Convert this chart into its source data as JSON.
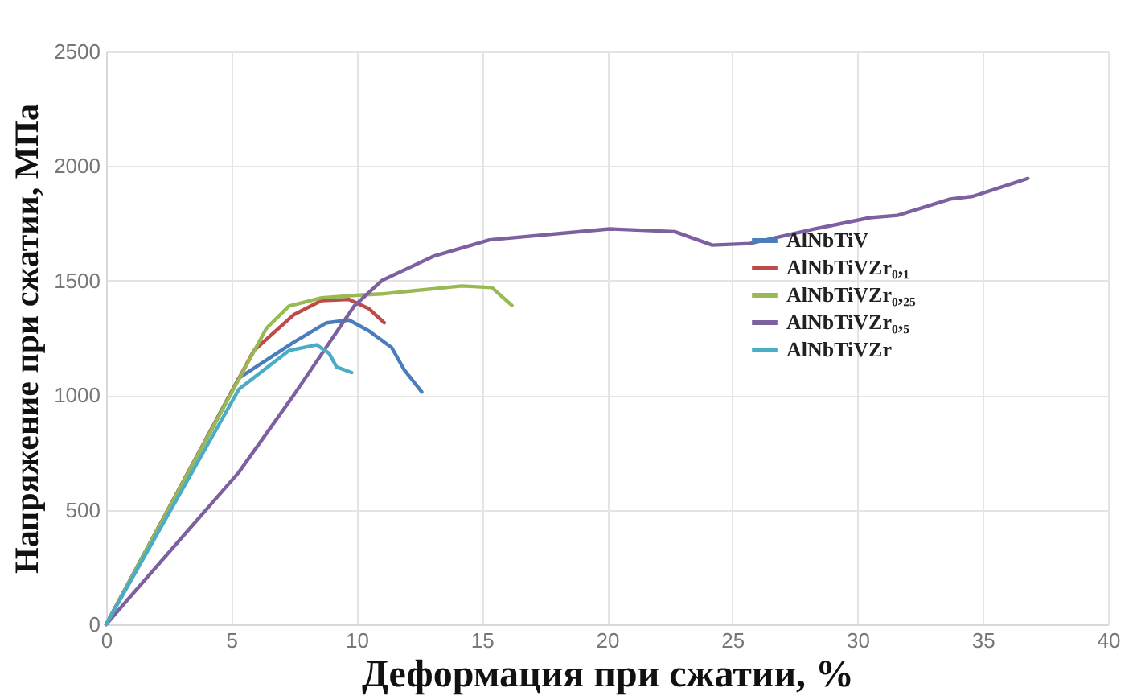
{
  "chart_data": {
    "type": "line",
    "xlabel": "Деформация при сжатии, %",
    "ylabel": "Напряжение при сжатии, МПа",
    "xlim": [
      0,
      40
    ],
    "xticks": [
      0,
      5,
      10,
      15,
      20,
      25,
      30,
      35,
      40
    ],
    "ylim": [
      0,
      2500
    ],
    "yticks": [
      0,
      500,
      1000,
      1500,
      2000,
      2500
    ],
    "grid": true,
    "legend": "right",
    "series": [
      {
        "name": "AlNbTiV",
        "color": "#4a7ebb",
        "x": [
          0,
          5.3,
          7.5,
          8.8,
          9.7,
          10.5,
          11.4,
          11.9,
          12.6
        ],
        "values": [
          0,
          1075,
          1232,
          1316,
          1328,
          1280,
          1208,
          1111,
          1014
        ]
      },
      {
        "name": "AlNbTiVZr₀,₁",
        "color": "#be4b48",
        "x": [
          0,
          5.9,
          7.5,
          8.6,
          9.7,
          10.5,
          11.1
        ],
        "values": [
          0,
          1195,
          1352,
          1413,
          1418,
          1377,
          1316
        ]
      },
      {
        "name": "AlNbTiVZr₀,₂₅",
        "color": "#98b954",
        "x": [
          0,
          6.4,
          7.3,
          8.6,
          10.1,
          11,
          14.2,
          15.4,
          16.2
        ],
        "values": [
          0,
          1292,
          1389,
          1425,
          1437,
          1442,
          1477,
          1470,
          1392
        ]
      },
      {
        "name": "AlNbTiVZr₀,₅",
        "color": "#7d60a0",
        "x": [
          0,
          5.3,
          7.5,
          9.9,
          11,
          13.1,
          15.3,
          20.1,
          22.7,
          24.2,
          25.7,
          28.3,
          30.5,
          31.6,
          33.7,
          34.6,
          36.8
        ],
        "values": [
          0,
          664,
          1002,
          1389,
          1500,
          1608,
          1678,
          1726,
          1714,
          1655,
          1662,
          1726,
          1775,
          1785,
          1856,
          1868,
          1946
        ]
      },
      {
        "name": "AlNbTiVZr",
        "color": "#4bacc6",
        "x": [
          0,
          5.3,
          7.3,
          8.4,
          8.9,
          9.2,
          9.8
        ],
        "values": [
          0,
          1026,
          1195,
          1220,
          1183,
          1123,
          1099
        ]
      }
    ]
  }
}
